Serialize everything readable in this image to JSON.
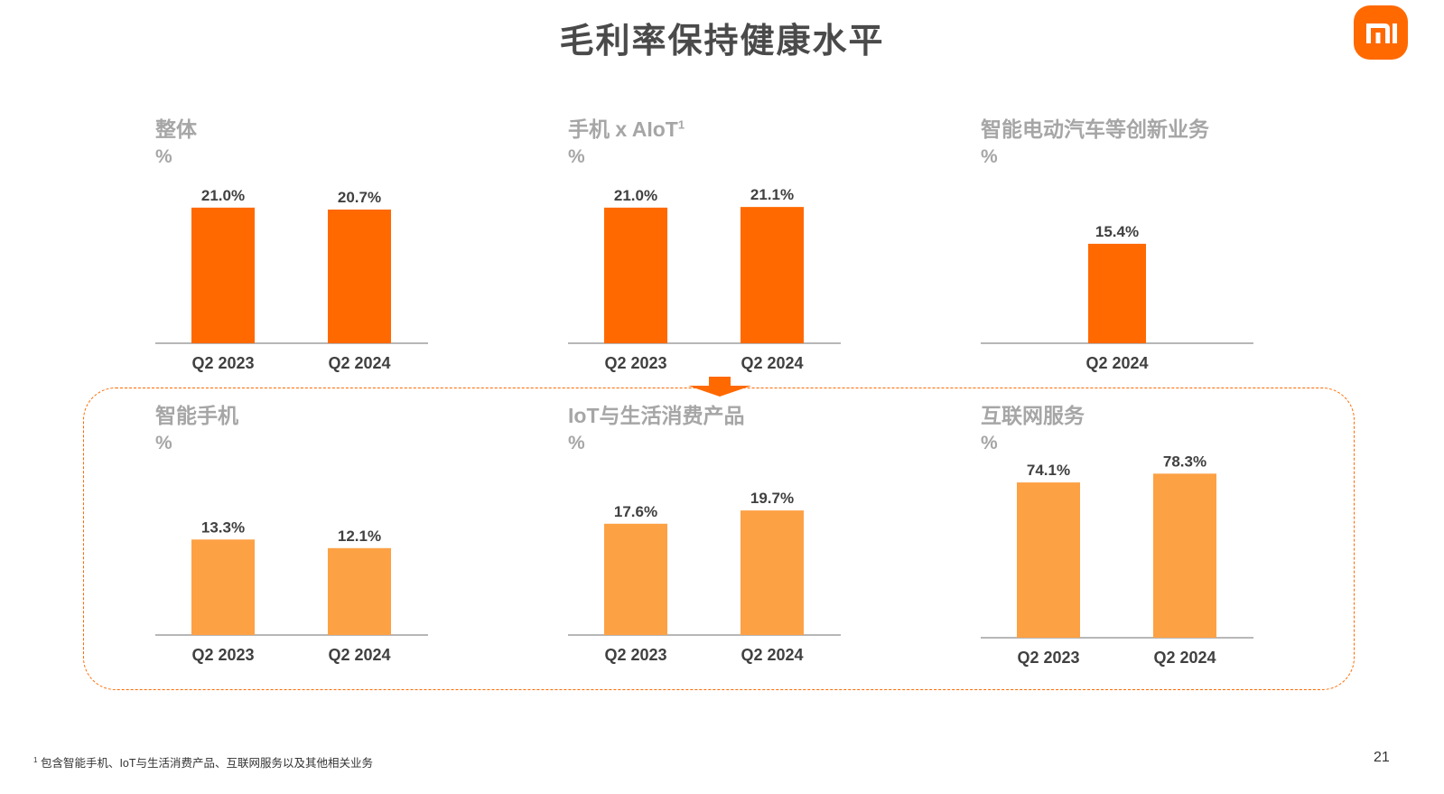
{
  "title": "毛利率保持健康水平",
  "brand_color": "#ff6900",
  "logo_text": "mi",
  "footnote": {
    "marker": "1",
    "text": "包含智能手机、IoT与生活消费产品、互联网服务以及其他相关业务"
  },
  "page_number": "21",
  "chart_data": [
    {
      "type": "bar",
      "title": "整体",
      "title_sup": "",
      "ylabel": "%",
      "categories": [
        "Q2 2023",
        "Q2 2024"
      ],
      "values": [
        21.0,
        20.7
      ],
      "labels": [
        "21.0%",
        "20.7%"
      ],
      "color": "#ff6900"
    },
    {
      "type": "bar",
      "title": "手机 x AIoT",
      "title_sup": "1",
      "ylabel": "%",
      "categories": [
        "Q2 2023",
        "Q2 2024"
      ],
      "values": [
        21.0,
        21.1
      ],
      "labels": [
        "21.0%",
        "21.1%"
      ],
      "color": "#ff6900"
    },
    {
      "type": "bar",
      "title": "智能电动汽车等创新业务",
      "title_sup": "",
      "ylabel": "%",
      "categories": [
        "Q2 2024"
      ],
      "values": [
        15.4
      ],
      "labels": [
        "15.4%"
      ],
      "color": "#ff6900"
    },
    {
      "type": "bar",
      "title": "智能手机",
      "title_sup": "",
      "ylabel": "%",
      "categories": [
        "Q2 2023",
        "Q2 2024"
      ],
      "values": [
        13.3,
        12.1
      ],
      "labels": [
        "13.3%",
        "12.1%"
      ],
      "color": "#fda145"
    },
    {
      "type": "bar",
      "title": "IoT与生活消费产品",
      "title_sup": "",
      "ylabel": "%",
      "categories": [
        "Q2 2023",
        "Q2 2024"
      ],
      "values": [
        17.6,
        19.7
      ],
      "labels": [
        "17.6%",
        "19.7%"
      ],
      "color": "#fda145"
    },
    {
      "type": "bar",
      "title": "互联网服务",
      "title_sup": "",
      "ylabel": "%",
      "categories": [
        "Q2 2023",
        "Q2 2024"
      ],
      "values": [
        74.1,
        78.3
      ],
      "labels": [
        "74.1%",
        "78.3%"
      ],
      "color": "#fda145"
    }
  ]
}
